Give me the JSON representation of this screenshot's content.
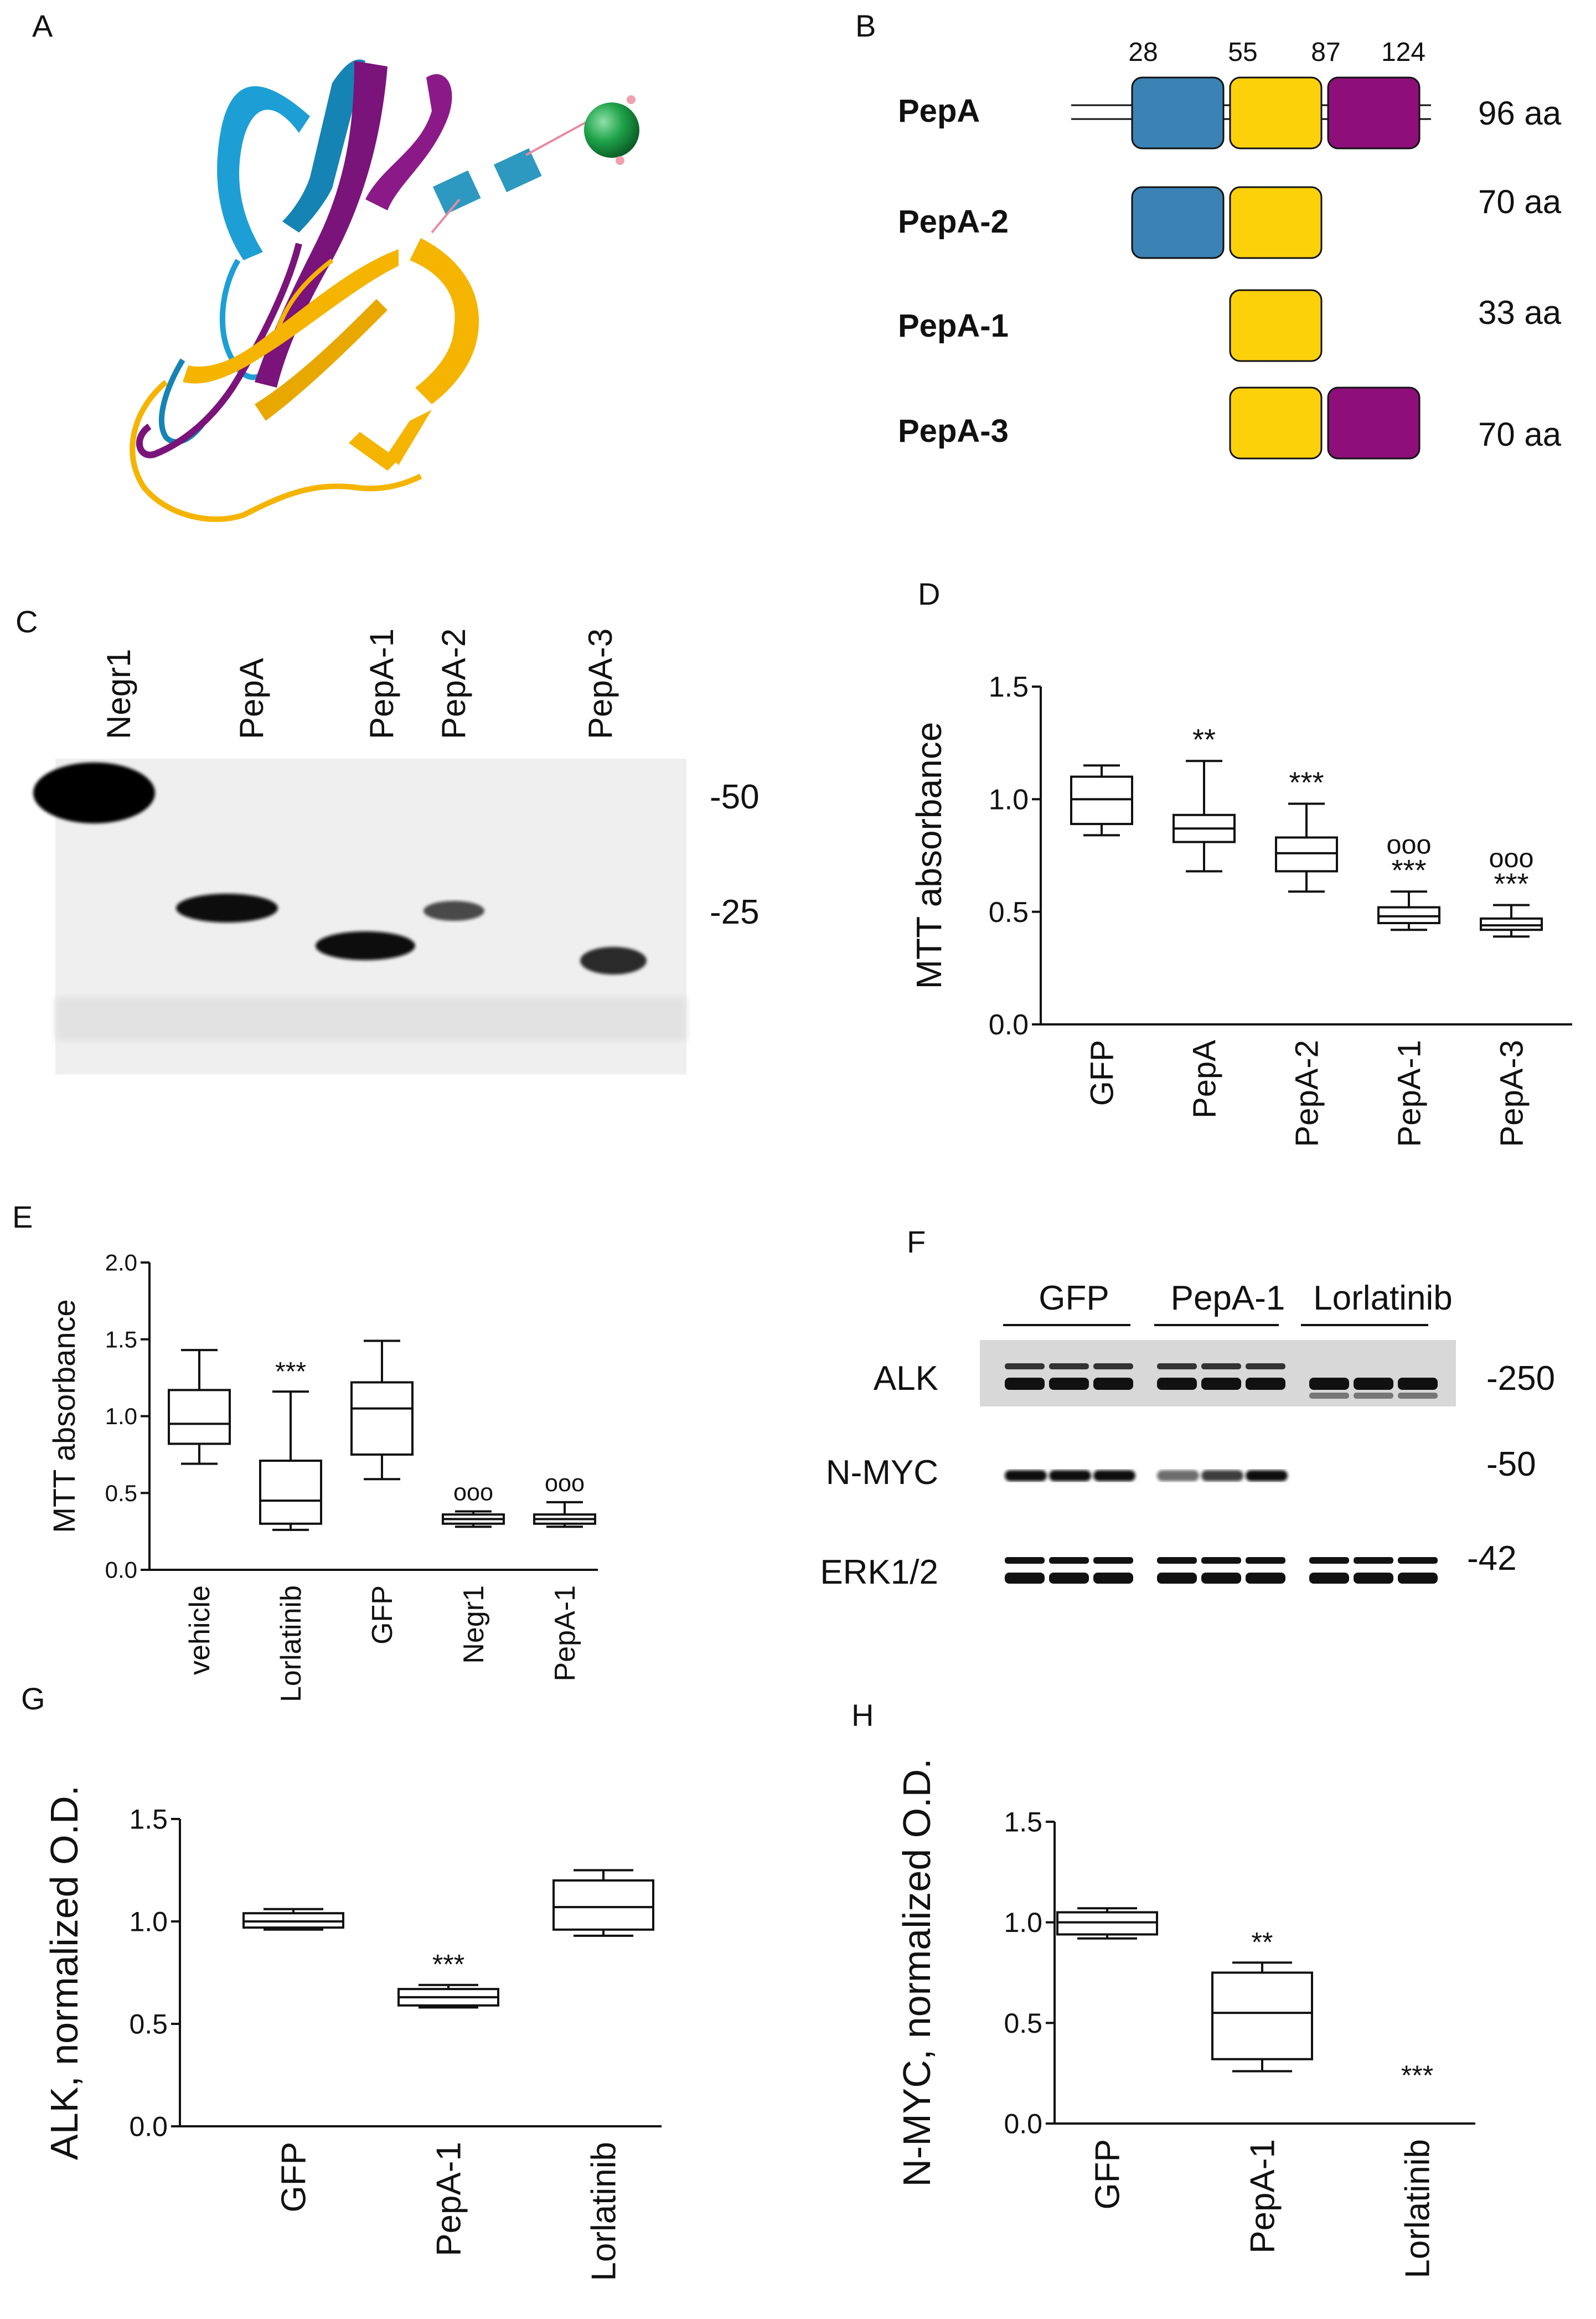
{
  "panels": {
    "A": "A",
    "B": "B",
    "C": "C",
    "D": "D",
    "E": "E",
    "F": "F",
    "G": "G",
    "H": "H"
  },
  "colors": {
    "domain1": "#3b82b4",
    "domain2": "#fdd10a",
    "domain3": "#8e0f7a",
    "sphere": "#1fa34a"
  },
  "panel_b": {
    "positions": [
      "28",
      "55",
      "87",
      "124"
    ],
    "constructs": [
      {
        "name": "PepA",
        "length": "96 aa",
        "domains": [
          "blue",
          "yellow",
          "purple"
        ]
      },
      {
        "name": "PepA-2",
        "length": "70 aa",
        "domains": [
          "blue",
          "yellow"
        ]
      },
      {
        "name": "PepA-1",
        "length": "33 aa",
        "domains": [
          "yellow"
        ]
      },
      {
        "name": "PepA-3",
        "length": "70 aa",
        "domains": [
          "yellow",
          "purple"
        ]
      }
    ]
  },
  "panel_c": {
    "lanes": [
      "Negr1",
      "PepA",
      "PepA-1",
      "PepA-2",
      "PepA-3"
    ],
    "markers": [
      "-50",
      "-25"
    ]
  },
  "panel_f": {
    "groups": [
      "GFP",
      "PepA-1",
      "Lorlatinib"
    ],
    "rows": [
      "ALK",
      "N-MYC",
      "ERK1/2"
    ],
    "markers": [
      "-250",
      "-50",
      "-42"
    ]
  },
  "chart_data": [
    {
      "id": "D",
      "type": "box",
      "ylabel": "MTT absorbance",
      "ylim": [
        0,
        1.5
      ],
      "yticks": [
        "0.0",
        "0.5",
        "1.0",
        "1.5"
      ],
      "categories": [
        "GFP",
        "PepA",
        "PepA-2",
        "PepA-1",
        "PepA-3"
      ],
      "boxes": [
        {
          "min": 0.84,
          "q1": 0.89,
          "median": 1.0,
          "q3": 1.1,
          "max": 1.15
        },
        {
          "min": 0.68,
          "q1": 0.81,
          "median": 0.87,
          "q3": 0.93,
          "max": 1.17
        },
        {
          "min": 0.59,
          "q1": 0.68,
          "median": 0.76,
          "q3": 0.83,
          "max": 0.98
        },
        {
          "min": 0.42,
          "q1": 0.45,
          "median": 0.48,
          "q3": 0.52,
          "max": 0.59
        },
        {
          "min": 0.39,
          "q1": 0.42,
          "median": 0.44,
          "q3": 0.47,
          "max": 0.53
        }
      ],
      "annotations": [
        "",
        "**",
        "***",
        "ooo\n***",
        "ooo\n***"
      ]
    },
    {
      "id": "E",
      "type": "box",
      "ylabel": "MTT absorbance",
      "ylim": [
        0,
        2.0
      ],
      "yticks": [
        "0.0",
        "0.5",
        "1.0",
        "1.5",
        "2.0"
      ],
      "categories": [
        "vehicle",
        "Lorlatinib",
        "GFP",
        "Negr1",
        "PepA-1"
      ],
      "boxes": [
        {
          "min": 0.69,
          "q1": 0.82,
          "median": 0.95,
          "q3": 1.17,
          "max": 1.43
        },
        {
          "min": 0.26,
          "q1": 0.3,
          "median": 0.45,
          "q3": 0.71,
          "max": 1.16
        },
        {
          "min": 0.59,
          "q1": 0.75,
          "median": 1.05,
          "q3": 1.22,
          "max": 1.49
        },
        {
          "min": 0.28,
          "q1": 0.3,
          "median": 0.33,
          "q3": 0.36,
          "max": 0.38
        },
        {
          "min": 0.28,
          "q1": 0.3,
          "median": 0.33,
          "q3": 0.36,
          "max": 0.44
        }
      ],
      "annotations": [
        "",
        "***",
        "",
        "ooo",
        "ooo"
      ]
    },
    {
      "id": "G",
      "type": "box",
      "ylabel": "ALK, normalized O.D.",
      "ylim": [
        0,
        1.5
      ],
      "yticks": [
        "0.0",
        "0.5",
        "1.0",
        "1.5"
      ],
      "categories": [
        "GFP",
        "PepA-1",
        "Lorlatinib"
      ],
      "boxes": [
        {
          "min": 0.96,
          "q1": 0.97,
          "median": 1.0,
          "q3": 1.04,
          "max": 1.06
        },
        {
          "min": 0.58,
          "q1": 0.59,
          "median": 0.63,
          "q3": 0.67,
          "max": 0.69
        },
        {
          "min": 0.93,
          "q1": 0.96,
          "median": 1.07,
          "q3": 1.2,
          "max": 1.25
        }
      ],
      "annotations": [
        "",
        "***",
        ""
      ]
    },
    {
      "id": "H",
      "type": "box",
      "ylabel": "N-MYC, normalized O.D.",
      "ylim": [
        0,
        1.5
      ],
      "yticks": [
        "0.0",
        "0.5",
        "1.0",
        "1.5"
      ],
      "categories": [
        "GFP",
        "PepA-1",
        "Lorlatinib"
      ],
      "boxes": [
        {
          "min": 0.92,
          "q1": 0.94,
          "median": 1.0,
          "q3": 1.05,
          "max": 1.07
        },
        {
          "min": 0.26,
          "q1": 0.32,
          "median": 0.55,
          "q3": 0.75,
          "max": 0.8
        },
        {
          "min": 0.0,
          "q1": 0.0,
          "median": 0.0,
          "q3": 0.0,
          "max": 0.0
        }
      ],
      "annotations": [
        "",
        "**",
        "***"
      ]
    }
  ]
}
